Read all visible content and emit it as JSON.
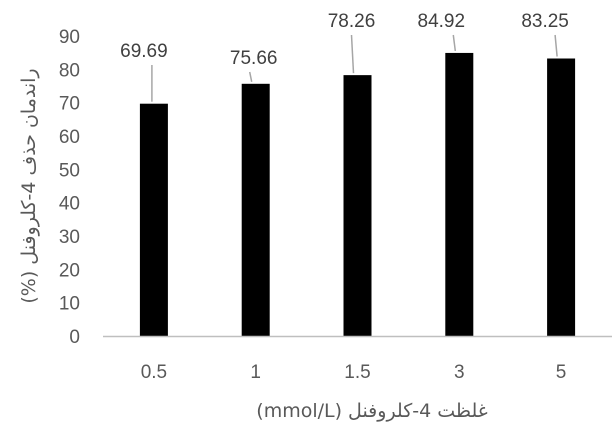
{
  "chart_data": {
    "type": "bar",
    "title": "",
    "categories": [
      "0.5",
      "1",
      "1.5",
      "3",
      "5"
    ],
    "values": [
      69.69,
      75.66,
      78.26,
      84.92,
      83.25
    ],
    "data_labels": [
      "69.69",
      "75.66",
      "78.26",
      "84.92",
      "83.25"
    ],
    "xlabel": "غلظت 4-کلروفنل (mmol/L)",
    "ylabel": "راندمان حذف 4-کلروفنل (%)",
    "ylim": [
      0,
      90
    ],
    "yticks": [
      "0",
      "10",
      "20",
      "30",
      "40",
      "50",
      "60",
      "70",
      "80",
      "90"
    ],
    "grid": false,
    "legend": "none",
    "colors": {
      "bar": "#000000",
      "axis": "#bfbfbf",
      "leader": "#a6a6a6",
      "text": "#595959"
    }
  }
}
